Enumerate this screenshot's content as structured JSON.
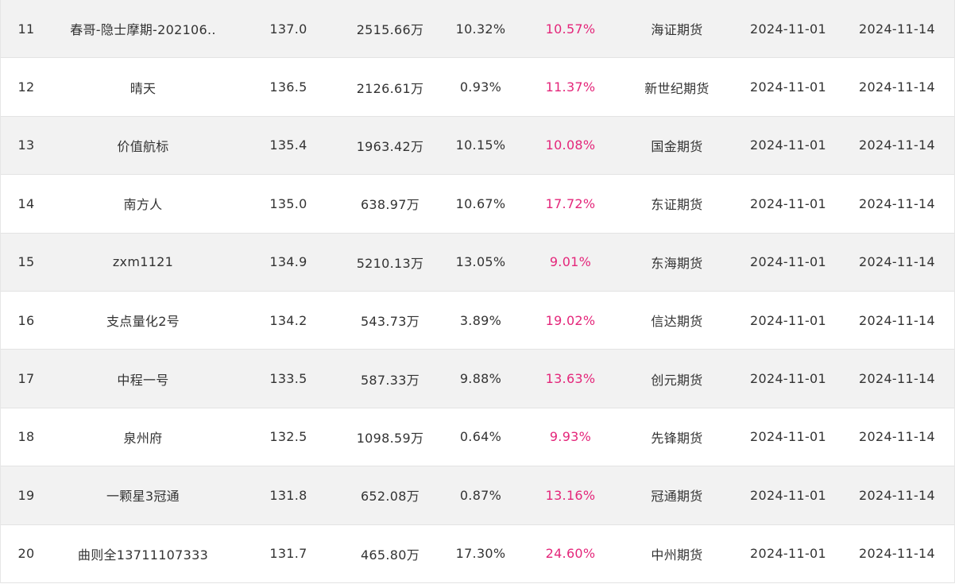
{
  "table": {
    "rows": [
      {
        "rank": "11",
        "name": "春哥-隐士摩期-202106..",
        "score": "137.0",
        "scale": "2515.66万",
        "return": "10.32%",
        "drawdown": "10.57%",
        "broker": "海证期货",
        "start_date": "2024-11-01",
        "end_date": "2024-11-14"
      },
      {
        "rank": "12",
        "name": "晴天",
        "score": "136.5",
        "scale": "2126.61万",
        "return": "0.93%",
        "drawdown": "11.37%",
        "broker": "新世纪期货",
        "start_date": "2024-11-01",
        "end_date": "2024-11-14"
      },
      {
        "rank": "13",
        "name": "价值航标",
        "score": "135.4",
        "scale": "1963.42万",
        "return": "10.15%",
        "drawdown": "10.08%",
        "broker": "国金期货",
        "start_date": "2024-11-01",
        "end_date": "2024-11-14"
      },
      {
        "rank": "14",
        "name": "南方人",
        "score": "135.0",
        "scale": "638.97万",
        "return": "10.67%",
        "drawdown": "17.72%",
        "broker": "东证期货",
        "start_date": "2024-11-01",
        "end_date": "2024-11-14"
      },
      {
        "rank": "15",
        "name": "zxm1121",
        "score": "134.9",
        "scale": "5210.13万",
        "return": "13.05%",
        "drawdown": "9.01%",
        "broker": "东海期货",
        "start_date": "2024-11-01",
        "end_date": "2024-11-14"
      },
      {
        "rank": "16",
        "name": "支点量化2号",
        "score": "134.2",
        "scale": "543.73万",
        "return": "3.89%",
        "drawdown": "19.02%",
        "broker": "信达期货",
        "start_date": "2024-11-01",
        "end_date": "2024-11-14"
      },
      {
        "rank": "17",
        "name": "中程一号",
        "score": "133.5",
        "scale": "587.33万",
        "return": "9.88%",
        "drawdown": "13.63%",
        "broker": "创元期货",
        "start_date": "2024-11-01",
        "end_date": "2024-11-14"
      },
      {
        "rank": "18",
        "name": "泉州府",
        "score": "132.5",
        "scale": "1098.59万",
        "return": "0.64%",
        "drawdown": "9.93%",
        "broker": "先锋期货",
        "start_date": "2024-11-01",
        "end_date": "2024-11-14"
      },
      {
        "rank": "19",
        "name": "一颗星3冠通",
        "score": "131.8",
        "scale": "652.08万",
        "return": "0.87%",
        "drawdown": "13.16%",
        "broker": "冠通期货",
        "start_date": "2024-11-01",
        "end_date": "2024-11-14"
      },
      {
        "rank": "20",
        "name": "曲则全13711107333",
        "score": "131.7",
        "scale": "465.80万",
        "return": "17.30%",
        "drawdown": "24.60%",
        "broker": "中州期货",
        "start_date": "2024-11-01",
        "end_date": "2024-11-14"
      }
    ]
  },
  "colors": {
    "row_alt_background": "#f2f2f2",
    "row_background": "#ffffff",
    "drawdown_text": "#e4267a",
    "text": "#333333",
    "border": "#e3e3e3"
  }
}
